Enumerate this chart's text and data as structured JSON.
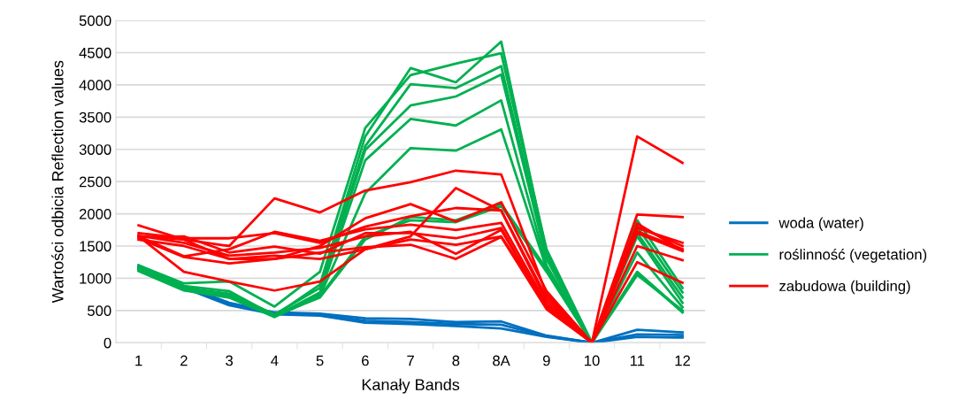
{
  "chart_data": {
    "type": "line",
    "xlabel": "Kanały Bands",
    "ylabel": "Wartości odbicia Reflection values",
    "categories": [
      "1",
      "2",
      "3",
      "4",
      "5",
      "6",
      "7",
      "8",
      "8A",
      "9",
      "10",
      "11",
      "12"
    ],
    "ylim": [
      0,
      5000
    ],
    "yticks": [
      0,
      500,
      1000,
      1500,
      2000,
      2500,
      3000,
      3500,
      4000,
      4500,
      5000
    ],
    "grid": "y",
    "legend": "right",
    "marker": "none",
    "line_style": "solid",
    "series": [
      {
        "name": "woda (water)",
        "color": "#0070c0",
        "values": [
          1200,
          880,
          620,
          470,
          450,
          380,
          370,
          320,
          330,
          110,
          0,
          200,
          160
        ]
      },
      {
        "color": "#0070c0",
        "values": [
          1170,
          860,
          600,
          450,
          430,
          340,
          320,
          290,
          280,
          100,
          0,
          130,
          120
        ]
      },
      {
        "color": "#0070c0",
        "values": [
          1150,
          850,
          580,
          440,
          420,
          310,
          290,
          260,
          220,
          90,
          0,
          90,
          80
        ]
      },
      {
        "name": "roślinność (vegetation)",
        "color": "#00b050",
        "values": [
          1200,
          920,
          950,
          560,
          1100,
          3330,
          4150,
          4330,
          4490,
          1450,
          0,
          1900,
          850
        ]
      },
      {
        "color": "#00b050",
        "values": [
          1180,
          880,
          800,
          420,
          900,
          3200,
          4260,
          4040,
          4670,
          1400,
          0,
          1800,
          780
        ]
      },
      {
        "color": "#00b050",
        "values": [
          1150,
          850,
          760,
          440,
          850,
          3050,
          4010,
          3950,
          4290,
          1350,
          0,
          1700,
          700
        ]
      },
      {
        "color": "#00b050",
        "values": [
          1130,
          830,
          730,
          410,
          780,
          2990,
          3680,
          3820,
          4160,
          1300,
          0,
          1650,
          620
        ]
      },
      {
        "color": "#00b050",
        "values": [
          1120,
          820,
          720,
          400,
          750,
          2830,
          3470,
          3370,
          3760,
          1200,
          0,
          1400,
          550
        ]
      },
      {
        "color": "#00b050",
        "values": [
          1110,
          810,
          700,
          400,
          720,
          2320,
          3020,
          2980,
          3310,
          1150,
          0,
          1100,
          480
        ]
      },
      {
        "color": "#00b050",
        "values": [
          1150,
          830,
          740,
          420,
          700,
          1600,
          1950,
          1900,
          2150,
          1150,
          0,
          1080,
          470
        ]
      },
      {
        "color": "#00b050",
        "values": [
          1140,
          820,
          720,
          410,
          720,
          1650,
          1900,
          1870,
          2120,
          1100,
          0,
          1050,
          500
        ]
      },
      {
        "name": "zabudowa (building)",
        "color": "#ff0000",
        "values": [
          1650,
          1600,
          1500,
          2240,
          2020,
          2360,
          2490,
          2670,
          2610,
          750,
          0,
          3200,
          2790
        ]
      },
      {
        "color": "#ff0000",
        "values": [
          1820,
          1600,
          1300,
          1300,
          1500,
          1930,
          2150,
          1880,
          2180,
          800,
          0,
          1990,
          1950
        ]
      },
      {
        "color": "#ff0000",
        "values": [
          1650,
          1100,
          950,
          810,
          950,
          1450,
          1650,
          2400,
          2050,
          700,
          0,
          1250,
          930
        ]
      },
      {
        "color": "#ff0000",
        "values": [
          1700,
          1620,
          1620,
          1700,
          1550,
          1800,
          1960,
          2090,
          2050,
          650,
          0,
          1780,
          1550
        ]
      },
      {
        "color": "#ff0000",
        "values": [
          1650,
          1340,
          1450,
          1720,
          1580,
          1760,
          1830,
          1750,
          1860,
          600,
          0,
          1800,
          1500
        ]
      },
      {
        "color": "#ff0000",
        "values": [
          1640,
          1650,
          1400,
          1490,
          1380,
          1700,
          1700,
          1620,
          1780,
          550,
          0,
          1730,
          1450
        ]
      },
      {
        "color": "#ff0000",
        "values": [
          1600,
          1500,
          1300,
          1350,
          1300,
          1450,
          1600,
          1520,
          1650,
          580,
          0,
          1700,
          1420
        ]
      },
      {
        "color": "#ff0000",
        "values": [
          1620,
          1330,
          1230,
          1300,
          1400,
          1480,
          1520,
          1300,
          1640,
          520,
          0,
          1500,
          1280
        ]
      },
      {
        "color": "#ff0000",
        "values": [
          1660,
          1550,
          1350,
          1400,
          1470,
          1650,
          1720,
          1380,
          1750,
          560,
          0,
          1850,
          1430
        ]
      }
    ]
  }
}
